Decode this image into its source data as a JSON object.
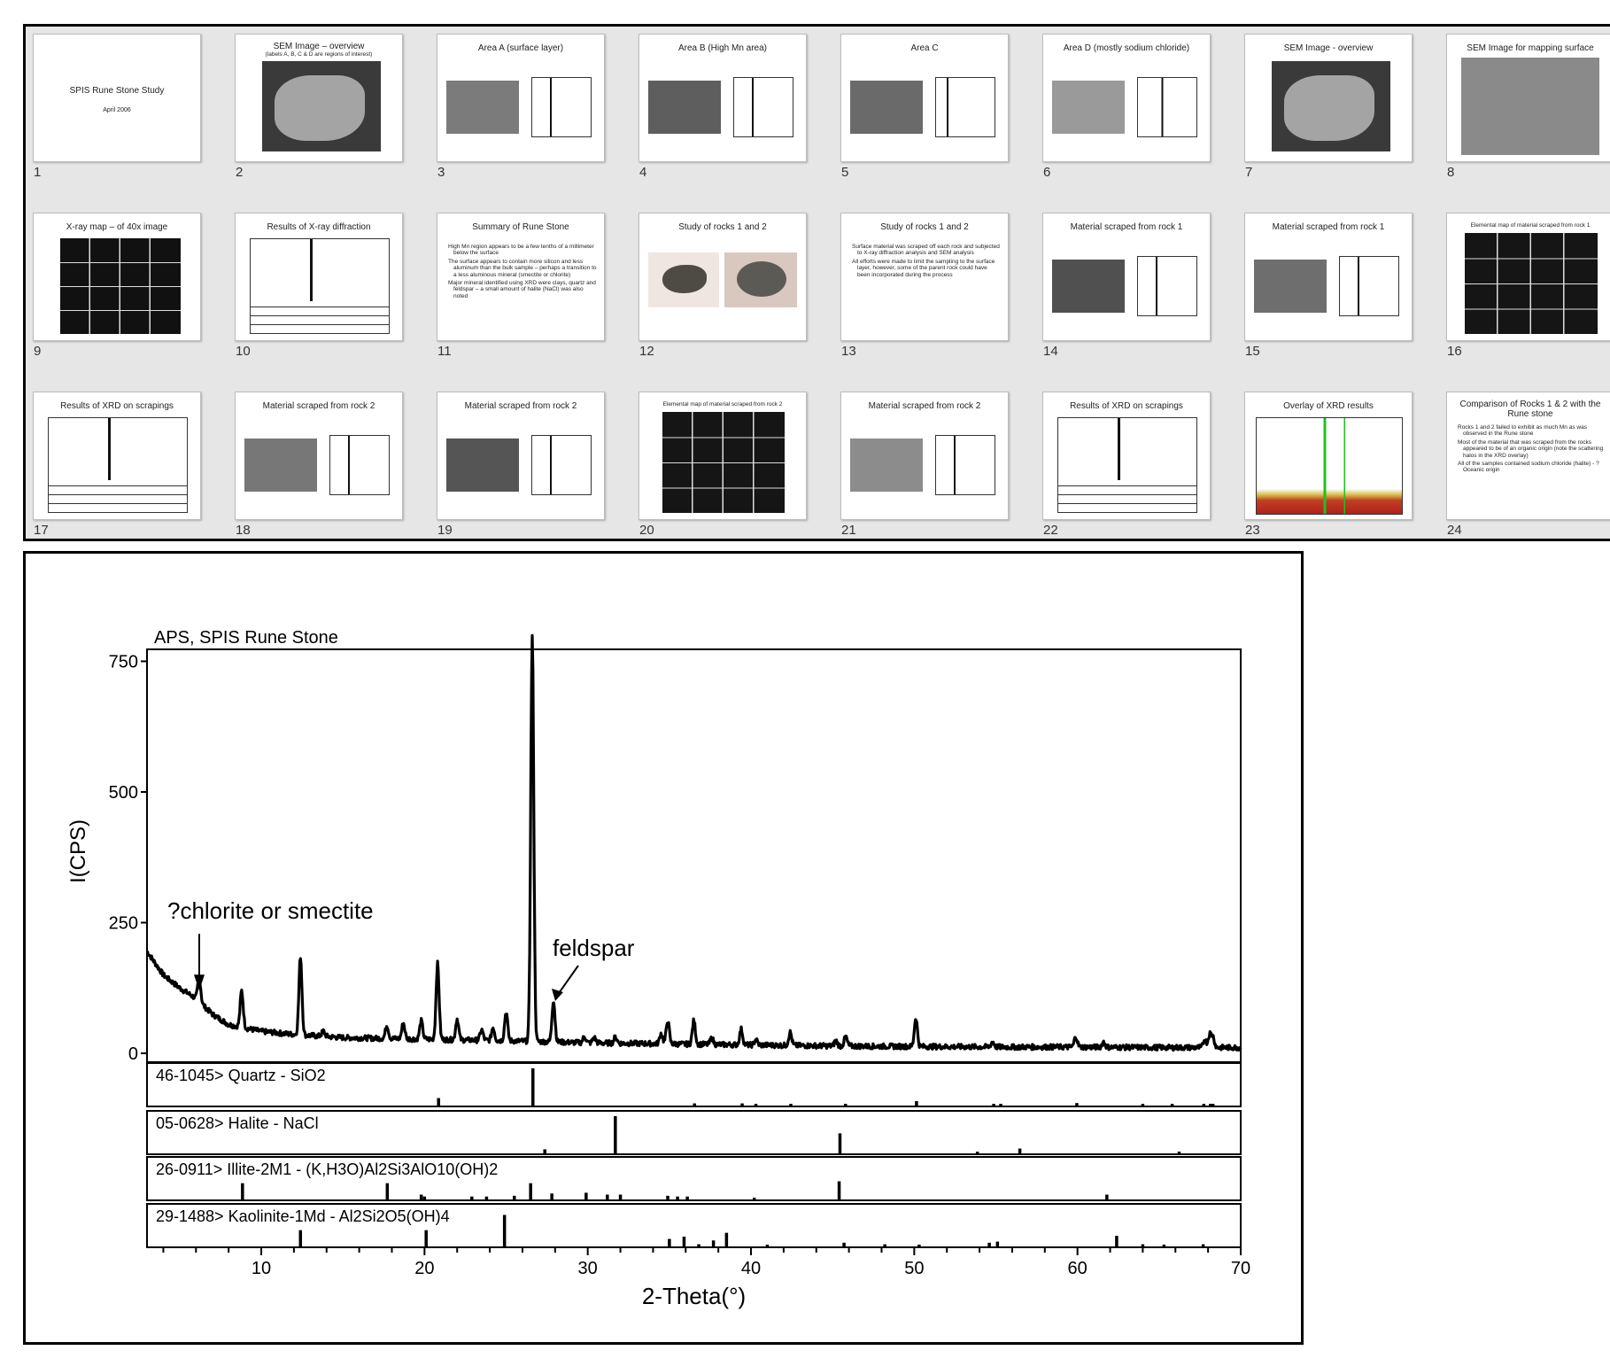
{
  "slides": [
    {
      "num": "1",
      "title": "SPIS Rune Stone Study",
      "subtitle": "April 2006"
    },
    {
      "num": "2",
      "title": "SEM Image – overview",
      "subtitle": "(labels A, B, C & D are regions of interest)"
    },
    {
      "num": "3",
      "title": "Area A (surface layer)"
    },
    {
      "num": "4",
      "title": "Area B (High Mn area)"
    },
    {
      "num": "5",
      "title": "Area C"
    },
    {
      "num": "6",
      "title": "Area D (mostly sodium chloride)"
    },
    {
      "num": "7",
      "title": "SEM Image - overview"
    },
    {
      "num": "8",
      "title": "SEM Image for mapping surface"
    },
    {
      "num": "9",
      "title": "X-ray map – of 40x image"
    },
    {
      "num": "10",
      "title": "Results of X-ray diffraction"
    },
    {
      "num": "11",
      "title": "Summary of Rune Stone",
      "bullets": [
        "High Mn region appears to be a few tenths of a millimeter below the surface",
        "The surface appears to contain more silicon and less aluminum than the bulk sample – perhaps a transition to a less aluminous mineral (smectite or chlorite)",
        "Major mineral identified using XRD were clays, quartz and feldspar – a small amount of halite (NaCl) was also noted"
      ]
    },
    {
      "num": "12",
      "title": "Study of rocks 1 and 2"
    },
    {
      "num": "13",
      "title": "Study of rocks 1 and 2",
      "bullets": [
        "Surface material was scraped off each rock and subjected to X-ray diffraction analysis and SEM analysis",
        "All efforts were made to limit the sampling to the surface layer, however, some of the parent rock could have been incorporated during the process"
      ]
    },
    {
      "num": "14",
      "title": "Material scraped from rock 1"
    },
    {
      "num": "15",
      "title": "Material scraped from rock 1"
    },
    {
      "num": "16",
      "title": "Elemental map of material scraped from rock 1"
    },
    {
      "num": "17",
      "title": "Results of XRD on scrapings"
    },
    {
      "num": "18",
      "title": "Material scraped from rock 2"
    },
    {
      "num": "19",
      "title": "Material scraped from rock 2"
    },
    {
      "num": "20",
      "title": "Elemental map of material scraped from rock 2"
    },
    {
      "num": "21",
      "title": "Material scraped from rock 2"
    },
    {
      "num": "22",
      "title": "Results of XRD on scrapings"
    },
    {
      "num": "23",
      "title": "Overlay of XRD results"
    },
    {
      "num": "24",
      "title": "Comparison of Rocks 1 & 2 with the Rune stone",
      "bullets": [
        "Rocks 1 and 2 failed to exhibit as much Mn as was observed in the Rune stone",
        "Most of the material that was scraped from the rocks appeared to be of an organic origin (note the scattering halos in the XRD overlay)",
        "All of the samples contained sodium chloride (halite) - ? Oceanic origin"
      ]
    }
  ],
  "chart_data": {
    "type": "line",
    "title": "APS, SPIS Rune Stone",
    "xlabel": "2-Theta(°)",
    "ylabel": "I(CPS)",
    "xlim": [
      3,
      70
    ],
    "ylim": [
      0,
      800
    ],
    "xticks": [
      10,
      20,
      30,
      40,
      50,
      60,
      70
    ],
    "yticks": [
      0,
      250,
      500,
      750
    ],
    "baseline": [
      [
        3,
        195
      ],
      [
        4,
        150
      ],
      [
        5,
        125
      ],
      [
        6,
        105
      ],
      [
        7,
        75
      ],
      [
        8,
        55
      ],
      [
        10,
        42
      ],
      [
        12,
        36
      ],
      [
        15,
        30
      ],
      [
        20,
        27
      ],
      [
        25,
        24
      ],
      [
        30,
        20
      ],
      [
        35,
        18
      ],
      [
        40,
        16
      ],
      [
        45,
        14
      ],
      [
        50,
        13
      ],
      [
        55,
        12
      ],
      [
        60,
        12
      ],
      [
        65,
        11
      ],
      [
        70,
        11
      ]
    ],
    "peaks": [
      [
        6.2,
        45
      ],
      [
        8.8,
        70
      ],
      [
        12.4,
        150
      ],
      [
        13.8,
        10
      ],
      [
        17.7,
        25
      ],
      [
        18.7,
        30
      ],
      [
        19.8,
        35
      ],
      [
        20.8,
        145
      ],
      [
        22.0,
        40
      ],
      [
        23.5,
        20
      ],
      [
        24.2,
        25
      ],
      [
        25.0,
        55
      ],
      [
        26.6,
        775
      ],
      [
        27.9,
        80
      ],
      [
        29.8,
        12
      ],
      [
        30.4,
        10
      ],
      [
        31.7,
        12
      ],
      [
        34.5,
        20
      ],
      [
        34.9,
        45
      ],
      [
        36.5,
        45
      ],
      [
        37.6,
        12
      ],
      [
        39.4,
        30
      ],
      [
        40.3,
        10
      ],
      [
        42.4,
        25
      ],
      [
        45.2,
        10
      ],
      [
        45.8,
        18
      ],
      [
        50.1,
        55
      ],
      [
        54.8,
        10
      ],
      [
        59.9,
        20
      ],
      [
        61.6,
        10
      ],
      [
        67.8,
        15
      ],
      [
        68.1,
        25
      ],
      [
        68.3,
        20
      ]
    ],
    "annotations": [
      {
        "text": "?chlorite or smectite",
        "x": 6.2,
        "y": 120
      },
      {
        "text": "feldspar",
        "x": 27.9,
        "y": 100
      }
    ],
    "reference_patterns": [
      {
        "label": "46-1045> Quartz - SiO2",
        "sticks": [
          [
            20.86,
            22
          ],
          [
            26.64,
            100
          ],
          [
            36.54,
            8
          ],
          [
            39.46,
            8
          ],
          [
            40.3,
            4
          ],
          [
            42.44,
            6
          ],
          [
            45.79,
            4
          ],
          [
            50.14,
            14
          ],
          [
            54.87,
            4
          ],
          [
            55.3,
            2
          ],
          [
            59.96,
            9
          ],
          [
            64.0,
            2
          ],
          [
            65.8,
            2
          ],
          [
            67.74,
            6
          ],
          [
            68.14,
            7
          ],
          [
            68.3,
            5
          ]
        ]
      },
      {
        "label": "05-0628> Halite - NaCl",
        "sticks": [
          [
            27.37,
            13
          ],
          [
            31.69,
            100
          ],
          [
            45.45,
            55
          ],
          [
            53.87,
            2
          ],
          [
            56.47,
            15
          ],
          [
            66.23,
            6
          ]
        ]
      },
      {
        "label": "26-0911> Illite-2M1 - (K,H3O)Al2Si3AlO10(OH)2",
        "sticks": [
          [
            8.85,
            45
          ],
          [
            17.72,
            45
          ],
          [
            19.8,
            15
          ],
          [
            20.0,
            10
          ],
          [
            22.9,
            10
          ],
          [
            23.8,
            10
          ],
          [
            25.5,
            12
          ],
          [
            26.5,
            45
          ],
          [
            27.8,
            18
          ],
          [
            29.9,
            20
          ],
          [
            31.2,
            15
          ],
          [
            32.0,
            15
          ],
          [
            34.9,
            12
          ],
          [
            35.5,
            10
          ],
          [
            36.1,
            10
          ],
          [
            40.2,
            6
          ],
          [
            45.4,
            50
          ],
          [
            61.8,
            15
          ]
        ]
      },
      {
        "label": "29-1488> Kaolinite-1Md - Al2Si2O5(OH)4",
        "sticks": [
          [
            12.4,
            45
          ],
          [
            20.1,
            45
          ],
          [
            24.9,
            85
          ],
          [
            35.0,
            22
          ],
          [
            35.9,
            28
          ],
          [
            36.8,
            8
          ],
          [
            37.7,
            18
          ],
          [
            38.5,
            38
          ],
          [
            41.0,
            6
          ],
          [
            45.7,
            12
          ],
          [
            48.2,
            8
          ],
          [
            50.3,
            6
          ],
          [
            54.6,
            12
          ],
          [
            55.1,
            15
          ],
          [
            62.4,
            30
          ],
          [
            64.0,
            8
          ],
          [
            65.3,
            6
          ],
          [
            67.7,
            8
          ]
        ]
      }
    ]
  }
}
